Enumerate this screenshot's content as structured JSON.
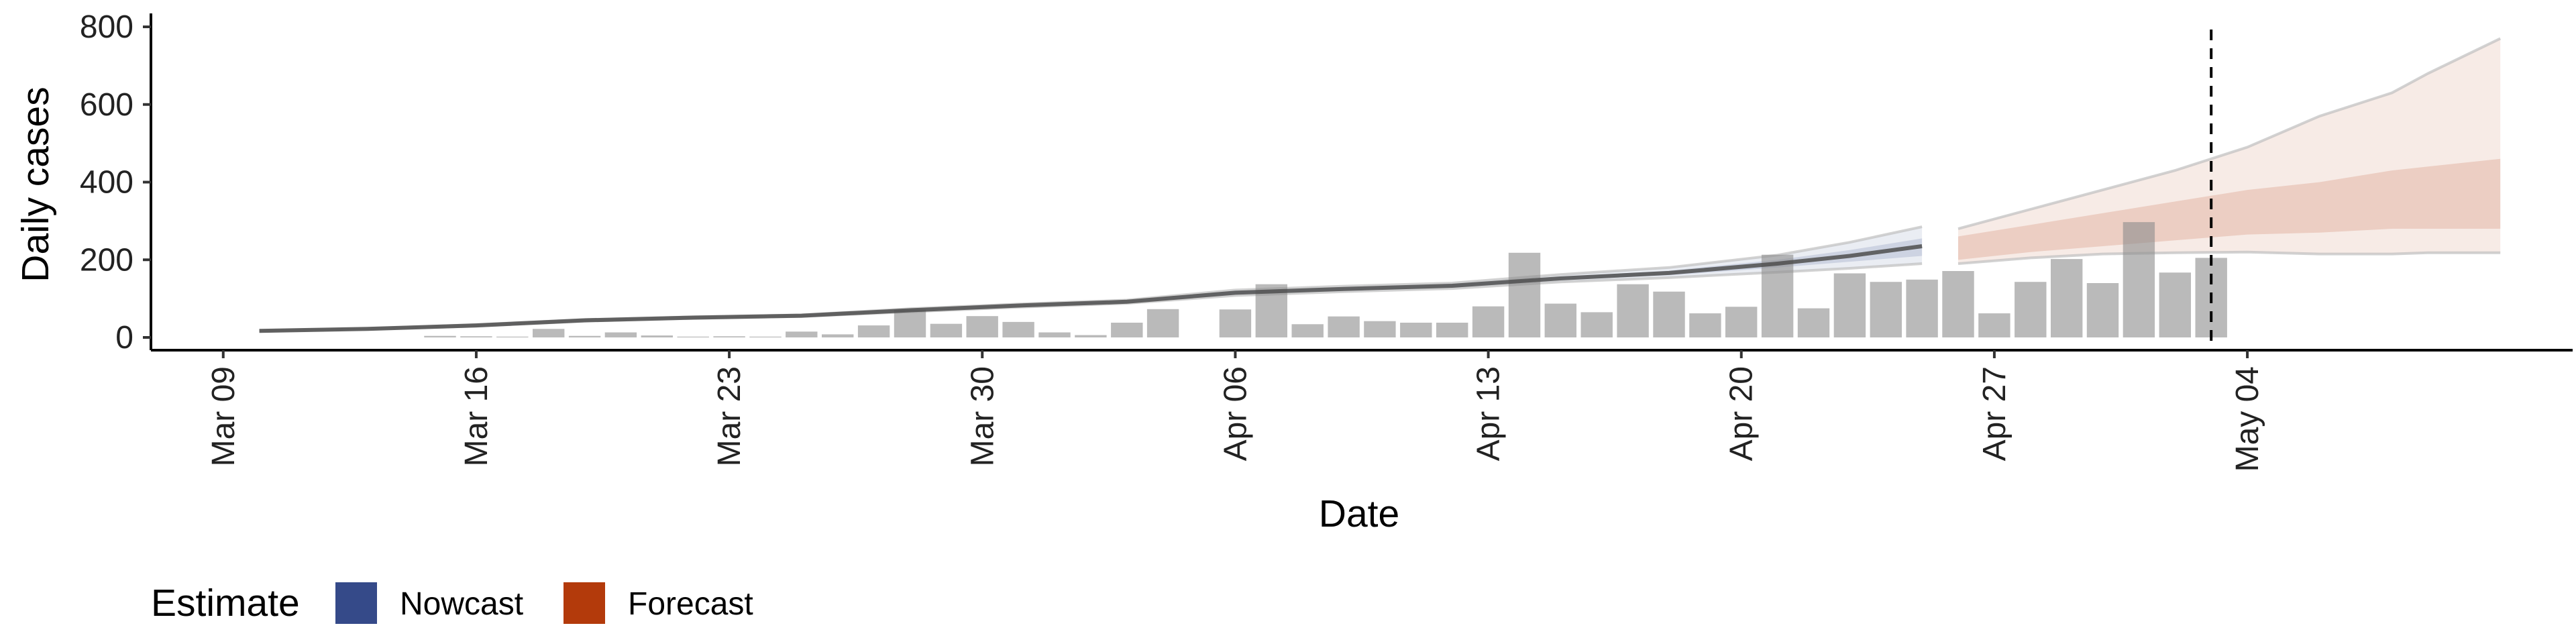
{
  "chart_data": {
    "type": "bar",
    "title": "",
    "xlabel": "Date",
    "ylabel": "Daily cases",
    "ylim": [
      0,
      800
    ],
    "yticks": [
      0,
      200,
      400,
      600,
      800
    ],
    "xticks": [
      "2020-03-09",
      "2020-03-16",
      "2020-03-23",
      "2020-03-30",
      "2020-04-06",
      "2020-04-13",
      "2020-04-20",
      "2020-04-27",
      "2020-05-04"
    ],
    "xtick_labels": [
      "Mar 09",
      "Mar 16",
      "Mar 23",
      "Mar 30",
      "Apr 06",
      "Apr 13",
      "Apr 20",
      "Apr 27",
      "May 04"
    ],
    "xlim": [
      "2020-03-07",
      "2020-05-13"
    ],
    "grid": false,
    "vline_date": "2020-05-03",
    "bars": {
      "dates": [
        "2020-03-15",
        "2020-03-16",
        "2020-03-17",
        "2020-03-18",
        "2020-03-19",
        "2020-03-20",
        "2020-03-21",
        "2020-03-22",
        "2020-03-23",
        "2020-03-24",
        "2020-03-25",
        "2020-03-26",
        "2020-03-27",
        "2020-03-28",
        "2020-03-29",
        "2020-03-30",
        "2020-03-31",
        "2020-04-01",
        "2020-04-02",
        "2020-04-03",
        "2020-04-04",
        "2020-04-06",
        "2020-04-07",
        "2020-04-08",
        "2020-04-09",
        "2020-04-10",
        "2020-04-11",
        "2020-04-12",
        "2020-04-13",
        "2020-04-14",
        "2020-04-15",
        "2020-04-16",
        "2020-04-17",
        "2020-04-18",
        "2020-04-19",
        "2020-04-20",
        "2020-04-21",
        "2020-04-22",
        "2020-04-23",
        "2020-04-24",
        "2020-04-25",
        "2020-04-26",
        "2020-04-27",
        "2020-04-28",
        "2020-04-29",
        "2020-04-30",
        "2020-05-01",
        "2020-05-02",
        "2020-05-03"
      ],
      "values": [
        4,
        3,
        2,
        22,
        4,
        13,
        5,
        2,
        3,
        2,
        15,
        8,
        31,
        72,
        35,
        55,
        40,
        13,
        6,
        38,
        73,
        72,
        137,
        34,
        54,
        42,
        38,
        38,
        80,
        218,
        87,
        65,
        137,
        118,
        62,
        79,
        213,
        75,
        165,
        143,
        149,
        171,
        62,
        143,
        202,
        140,
        297,
        167,
        205
      ]
    },
    "series": [
      {
        "name": "Nowcast",
        "color": "#354A89",
        "dates": [
          "2020-03-10",
          "2020-03-13",
          "2020-03-16",
          "2020-03-19",
          "2020-03-22",
          "2020-03-25",
          "2020-03-28",
          "2020-03-31",
          "2020-04-03",
          "2020-04-06",
          "2020-04-09",
          "2020-04-12",
          "2020-04-15",
          "2020-04-18",
          "2020-04-21",
          "2020-04-23",
          "2020-04-25"
        ],
        "median": [
          17,
          22,
          31,
          44,
          51,
          56,
          70,
          82,
          92,
          115,
          125,
          133,
          152,
          166,
          190,
          210,
          235
        ],
        "inner_lower": [
          17,
          22,
          30,
          43,
          50,
          55,
          68,
          80,
          90,
          112,
          122,
          130,
          148,
          160,
          180,
          195,
          210
        ],
        "inner_upper": [
          17,
          22,
          32,
          45,
          52,
          57,
          72,
          84,
          94,
          118,
          128,
          136,
          156,
          172,
          200,
          225,
          255
        ],
        "outer_lower": [
          16,
          21,
          29,
          42,
          49,
          54,
          66,
          78,
          88,
          108,
          118,
          126,
          143,
          154,
          168,
          178,
          190
        ],
        "outer_upper": [
          18,
          23,
          33,
          46,
          53,
          58,
          74,
          86,
          96,
          122,
          132,
          140,
          162,
          180,
          212,
          245,
          285
        ]
      },
      {
        "name": "Forecast",
        "color": "#B33A0B",
        "dates": [
          "2020-04-26",
          "2020-04-28",
          "2020-04-30",
          "2020-05-02",
          "2020-05-04",
          "2020-05-06",
          "2020-05-08",
          "2020-05-09",
          "2020-05-11"
        ],
        "median": [
          230,
          250,
          265,
          280,
          290,
          305,
          310,
          318,
          320
        ],
        "inner_lower": [
          200,
          220,
          235,
          250,
          265,
          270,
          280,
          280,
          280
        ],
        "inner_upper": [
          260,
          290,
          320,
          350,
          380,
          400,
          430,
          440,
          460
        ],
        "outer_lower": [
          190,
          205,
          215,
          218,
          220,
          215,
          215,
          218,
          218
        ],
        "outer_upper": [
          280,
          330,
          380,
          430,
          490,
          570,
          630,
          680,
          770
        ]
      }
    ],
    "legend": {
      "title": "Estimate",
      "position": "bottom-left",
      "items": [
        {
          "label": "Nowcast",
          "color": "#354A89"
        },
        {
          "label": "Forecast",
          "color": "#B33A0B"
        }
      ]
    }
  }
}
